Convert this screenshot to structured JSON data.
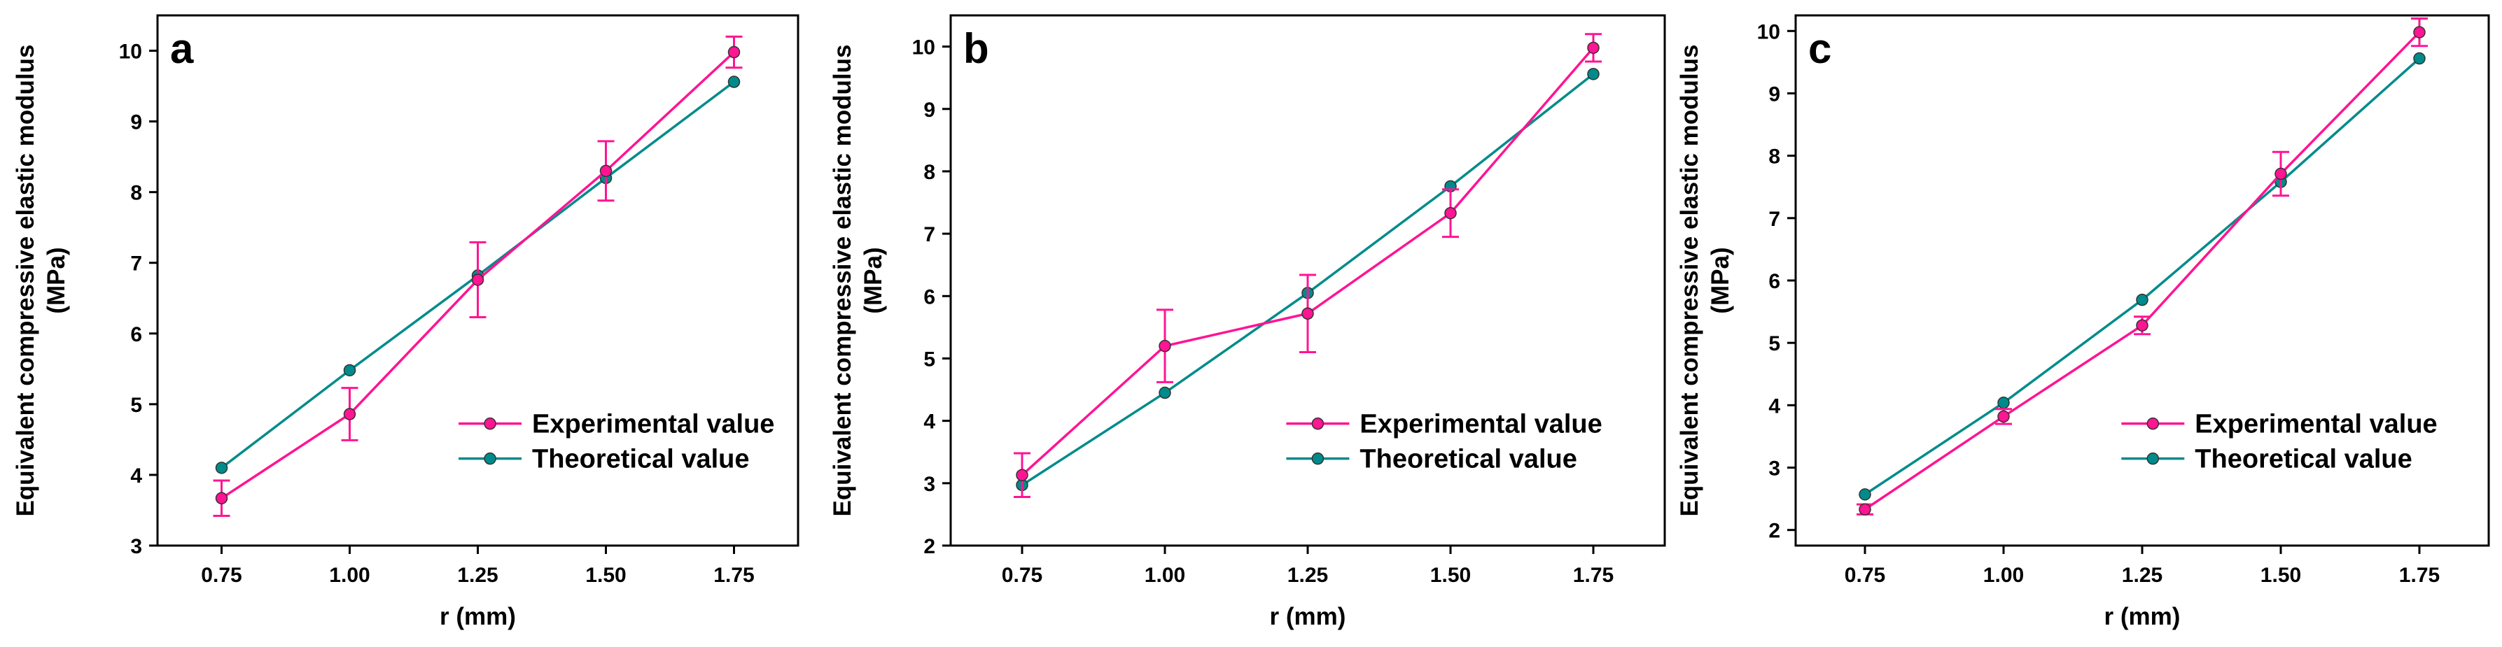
{
  "colors": {
    "experimental": "#ff1493",
    "theoretical": "#008b8b",
    "axis": "#000000"
  },
  "chart_data": [
    {
      "type": "line",
      "panel_label": "a",
      "x": [
        0.75,
        1.0,
        1.25,
        1.5,
        1.75
      ],
      "x_tick_labels": [
        "0.75",
        "1.00",
        "1.25",
        "1.50",
        "1.75"
      ],
      "xlim": [
        0.625,
        1.875
      ],
      "ylim": [
        3,
        10.5
      ],
      "y_ticks": [
        3,
        4,
        5,
        6,
        7,
        8,
        9,
        10
      ],
      "xlabel": "r (mm)",
      "ylabel_line1": "Equivalent compressive elastic modulus",
      "ylabel_line2": "(MPa)",
      "legend_position": "lower-right",
      "series": [
        {
          "name": "Experimental value",
          "values": [
            3.67,
            4.86,
            6.76,
            8.3,
            9.98
          ],
          "errors": [
            0.25,
            0.37,
            0.53,
            0.42,
            0.22
          ]
        },
        {
          "name": "Theoretical value",
          "values": [
            4.1,
            5.48,
            6.82,
            8.2,
            9.56
          ]
        }
      ]
    },
    {
      "type": "line",
      "panel_label": "b",
      "x": [
        0.75,
        1.0,
        1.25,
        1.5,
        1.75
      ],
      "x_tick_labels": [
        "0.75",
        "1.00",
        "1.25",
        "1.50",
        "1.75"
      ],
      "xlim": [
        0.625,
        1.875
      ],
      "ylim": [
        2,
        10.5
      ],
      "y_ticks": [
        2,
        3,
        4,
        5,
        6,
        7,
        8,
        9,
        10
      ],
      "xlabel": "r (mm)",
      "ylabel_line1": "Equivalent compressive elastic modulus",
      "ylabel_line2": "(MPa)",
      "legend_position": "lower-right",
      "series": [
        {
          "name": "Experimental value",
          "values": [
            3.13,
            5.2,
            5.72,
            7.33,
            9.98
          ],
          "errors": [
            0.35,
            0.58,
            0.62,
            0.38,
            0.22
          ]
        },
        {
          "name": "Theoretical value",
          "values": [
            2.97,
            4.45,
            6.05,
            7.76,
            9.56
          ]
        }
      ]
    },
    {
      "type": "line",
      "panel_label": "c",
      "x": [
        0.75,
        1.0,
        1.25,
        1.5,
        1.75
      ],
      "x_tick_labels": [
        "0.75",
        "1.00",
        "1.25",
        "1.50",
        "1.75"
      ],
      "xlim": [
        0.625,
        1.875
      ],
      "ylim": [
        1.75,
        10.25
      ],
      "y_ticks": [
        2,
        3,
        4,
        5,
        6,
        7,
        8,
        9,
        10
      ],
      "xlabel": "r (mm)",
      "ylabel_line1": "Equivalent compressive elastic modulus",
      "ylabel_line2": "(MPa)",
      "legend_position": "lower-right",
      "series": [
        {
          "name": "Experimental value",
          "values": [
            2.33,
            3.82,
            5.28,
            7.71,
            9.98
          ],
          "errors": [
            0.08,
            0.12,
            0.14,
            0.35,
            0.22
          ]
        },
        {
          "name": "Theoretical value",
          "values": [
            2.57,
            4.04,
            5.69,
            7.58,
            9.56
          ]
        }
      ]
    }
  ]
}
